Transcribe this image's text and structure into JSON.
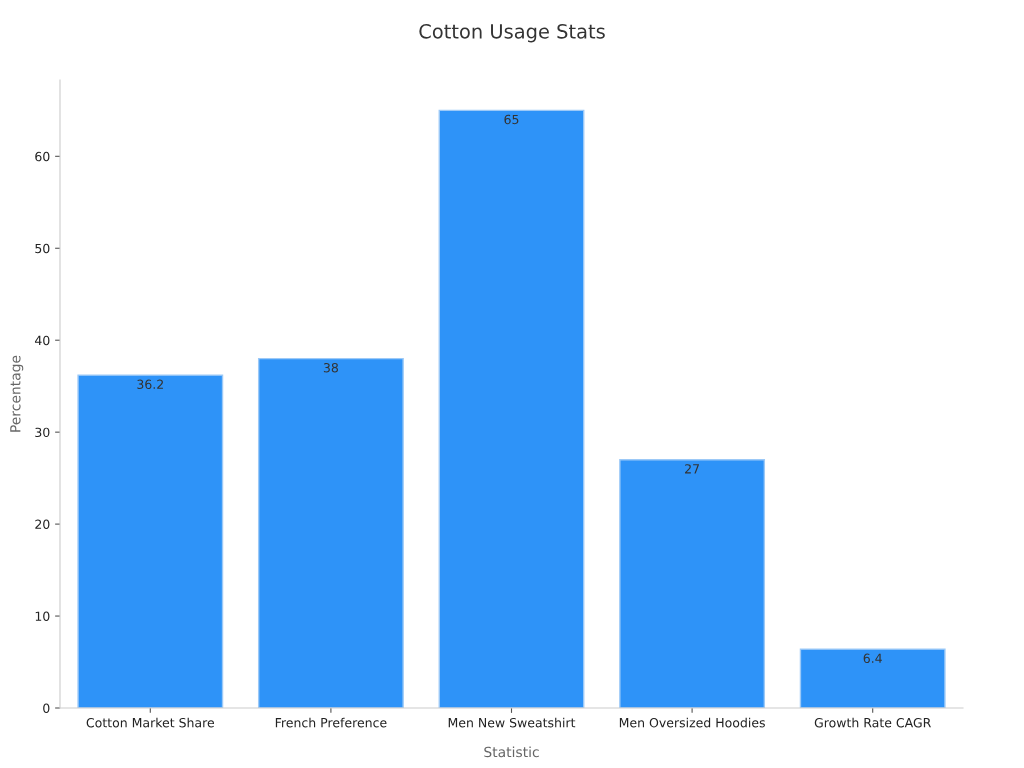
{
  "chart_data": {
    "type": "bar",
    "title": "Cotton Usage Stats",
    "xlabel": "Statistic",
    "ylabel": "Percentage",
    "categories": [
      "Cotton Market Share",
      "French Preference",
      "Men New Sweatshirt",
      "Men Oversized Hoodies",
      "Growth Rate CAGR"
    ],
    "values": [
      36.2,
      38,
      65,
      27,
      6.4
    ],
    "color": "#2e93f8",
    "ylim": [
      0,
      68.3
    ],
    "yticks": [
      0,
      10,
      20,
      30,
      40,
      50,
      60
    ],
    "grid": false,
    "data_labels": true
  }
}
